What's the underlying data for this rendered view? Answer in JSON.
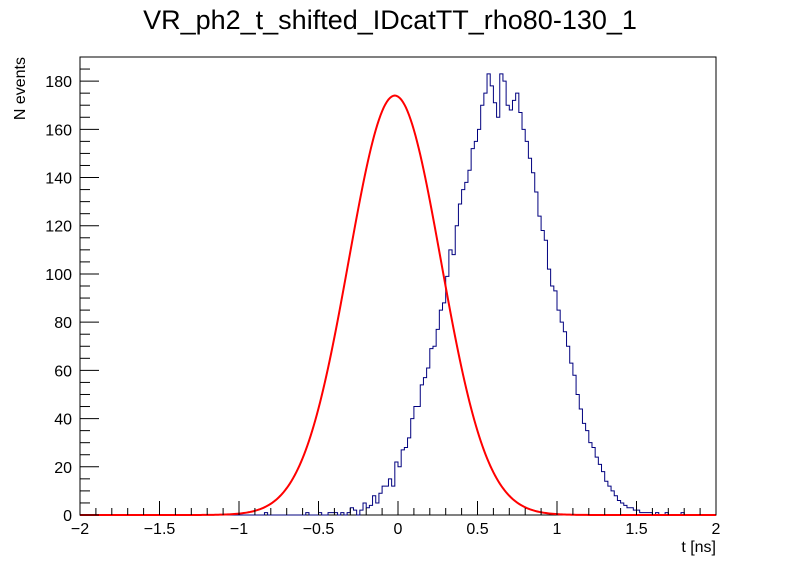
{
  "chart_data": {
    "type": "histogram",
    "title": "VR_ph2_t_shifted_IDcatTT_rho80-130_1",
    "xlabel": "t [ns]",
    "ylabel": "N events",
    "xlim": [
      -2,
      2
    ],
    "ylim": [
      0,
      190
    ],
    "grid": false,
    "x_ticks": [
      -2,
      -1.5,
      -1,
      -0.5,
      0,
      0.5,
      1,
      1.5,
      2
    ],
    "x_tick_labels": [
      "−2",
      "−1.5",
      "−1",
      "−0.5",
      "0",
      "0.5",
      "1",
      "1.5",
      "2"
    ],
    "y_ticks": [
      0,
      20,
      40,
      60,
      80,
      100,
      120,
      140,
      160,
      180
    ],
    "y_tick_labels": [
      "0",
      "20",
      "40",
      "60",
      "80",
      "100",
      "120",
      "140",
      "160",
      "180"
    ],
    "histogram": {
      "bin_range": [
        -2,
        2
      ],
      "bin_width": 0.02,
      "color": "#00007f",
      "counts": [
        0,
        0,
        0,
        0,
        0,
        0,
        0,
        0,
        0,
        0,
        0,
        0,
        0,
        0,
        0,
        0,
        0,
        0,
        0,
        0,
        0,
        0,
        0,
        0,
        0,
        0,
        0,
        0,
        0,
        0,
        0,
        0,
        0,
        0,
        0,
        0,
        0,
        0,
        0,
        0,
        0,
        0,
        0,
        0,
        0,
        0,
        0,
        0,
        0,
        0,
        0,
        0,
        0,
        0,
        0,
        0,
        0,
        0,
        1,
        0,
        0,
        0,
        0,
        0,
        0,
        0,
        0,
        0,
        0,
        0,
        0,
        1,
        0,
        0,
        0,
        1,
        0,
        0,
        1,
        1,
        1,
        0,
        1,
        0,
        1,
        3,
        2,
        0,
        2,
        5,
        3,
        4,
        8,
        5,
        9,
        12,
        12,
        15,
        12,
        22,
        20,
        27,
        28,
        32,
        40,
        45,
        45,
        54,
        57,
        61,
        69,
        70,
        77,
        85,
        88,
        99,
        110,
        108,
        120,
        129,
        135,
        138,
        143,
        152,
        155,
        160,
        170,
        175,
        183,
        178,
        171,
        165,
        183,
        180,
        170,
        168,
        172,
        175,
        167,
        160,
        155,
        148,
        142,
        134,
        124,
        118,
        114,
        102,
        95,
        93,
        85,
        80,
        76,
        70,
        63,
        58,
        50,
        44,
        38,
        35,
        30,
        28,
        24,
        21,
        18,
        14,
        12,
        10,
        8,
        6,
        5,
        4,
        3,
        3,
        2,
        2,
        1,
        1,
        1,
        1,
        0,
        1,
        0,
        0,
        1,
        0,
        0,
        0,
        0,
        1,
        0,
        0,
        0,
        0,
        0,
        0,
        0,
        0,
        0,
        0
      ]
    },
    "fit": {
      "function": "gaussian",
      "color": "#ff0000",
      "amplitude": 174,
      "mean": -0.02,
      "sigma": 0.29
    }
  }
}
